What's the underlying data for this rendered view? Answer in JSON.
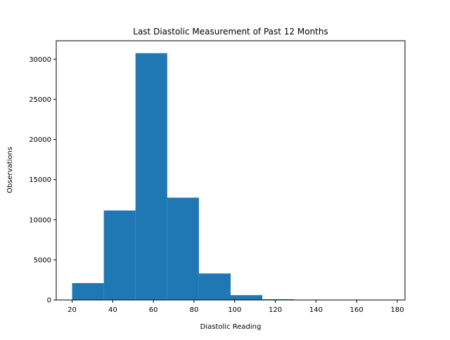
{
  "chart_data": {
    "type": "bar",
    "title": "Last Diastolic Measurement of Past 12 Months",
    "xlabel": "Diastolic Reading",
    "ylabel": "Observations",
    "bin_edges": [
      20,
      35.6,
      51.2,
      66.8,
      82.4,
      98,
      113.6,
      129.2,
      144.8,
      160.4,
      176
    ],
    "counts": [
      2100,
      11150,
      30750,
      12750,
      3300,
      600,
      90,
      15,
      5,
      5
    ],
    "xlim": [
      12.2,
      183.8
    ],
    "ylim": [
      0,
      32300
    ],
    "xticks": [
      20,
      40,
      60,
      80,
      100,
      120,
      140,
      160,
      180
    ],
    "yticks": [
      0,
      5000,
      10000,
      15000,
      20000,
      25000,
      30000
    ],
    "bar_color": "#1f77b4",
    "grid": false,
    "legend": "none"
  }
}
